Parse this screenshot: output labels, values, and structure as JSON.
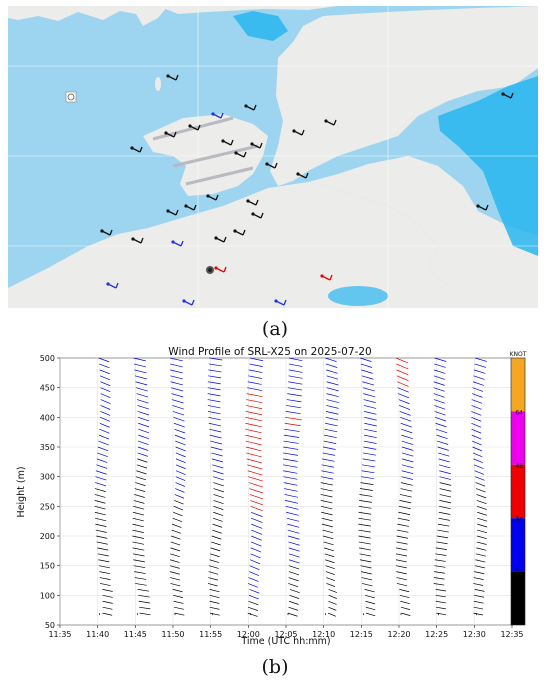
{
  "captions": {
    "a": "(a)",
    "b": "(b)"
  },
  "map": {
    "colors": {
      "land": "#ececea",
      "water": "#9dd4ef",
      "rain": "#29b6ef",
      "grid": "#ffffff"
    },
    "icons": [
      "wind-barb-icon",
      "compass-icon"
    ]
  },
  "chart_data": {
    "type": "scatter",
    "title": "Wind Profile of SRL-X25 on 2025-07-20",
    "xlabel": "Time (UTC hh:mm)",
    "ylabel": "Height (m)",
    "x_ticks": [
      "11:35",
      "11:40",
      "11:45",
      "11:50",
      "11:55",
      "12:00",
      "12:05",
      "12:10",
      "12:15",
      "12:20",
      "12:25",
      "12:30",
      "12:35"
    ],
    "y_ticks": [
      50,
      100,
      150,
      200,
      250,
      300,
      350,
      400,
      450,
      500
    ],
    "xlim": [
      "11:35",
      "12:35"
    ],
    "ylim": [
      50,
      500
    ],
    "grid": true,
    "times": [
      "11:40",
      "11:45",
      "11:50",
      "11:55",
      "12:00",
      "12:05",
      "12:10",
      "12:15",
      "12:20",
      "12:25",
      "12:30"
    ],
    "heights": {
      "start": 70,
      "end": 500,
      "step": 10
    },
    "speed_profiles": [
      [
        [
          70,
          12
        ],
        [
          150,
          16
        ],
        [
          270,
          20
        ],
        [
          300,
          24
        ],
        [
          380,
          25
        ],
        [
          500,
          26
        ]
      ],
      [
        [
          70,
          14
        ],
        [
          200,
          20
        ],
        [
          300,
          20
        ],
        [
          380,
          24
        ],
        [
          420,
          26
        ],
        [
          500,
          24
        ]
      ],
      [
        [
          70,
          12
        ],
        [
          200,
          18
        ],
        [
          300,
          24
        ],
        [
          400,
          26
        ],
        [
          500,
          26
        ]
      ],
      [
        [
          70,
          12
        ],
        [
          200,
          18
        ],
        [
          300,
          22
        ],
        [
          400,
          23
        ],
        [
          500,
          22
        ]
      ],
      [
        [
          70,
          20
        ],
        [
          180,
          28
        ],
        [
          240,
          32
        ],
        [
          260,
          36
        ],
        [
          300,
          40
        ],
        [
          400,
          40
        ],
        [
          440,
          36
        ],
        [
          460,
          28
        ],
        [
          500,
          26
        ]
      ],
      [
        [
          70,
          18
        ],
        [
          200,
          24
        ],
        [
          300,
          28
        ],
        [
          380,
          32
        ],
        [
          400,
          36
        ],
        [
          410,
          30
        ],
        [
          500,
          26
        ]
      ],
      [
        [
          70,
          14
        ],
        [
          200,
          18
        ],
        [
          300,
          22
        ],
        [
          400,
          24
        ],
        [
          500,
          26
        ]
      ],
      [
        [
          70,
          14
        ],
        [
          200,
          20
        ],
        [
          300,
          22
        ],
        [
          400,
          24
        ],
        [
          500,
          26
        ]
      ],
      [
        [
          70,
          12
        ],
        [
          200,
          18
        ],
        [
          300,
          22
        ],
        [
          420,
          28
        ],
        [
          450,
          32
        ],
        [
          470,
          36
        ],
        [
          490,
          38
        ],
        [
          500,
          36
        ]
      ],
      [
        [
          70,
          10
        ],
        [
          200,
          16
        ],
        [
          300,
          22
        ],
        [
          380,
          25
        ],
        [
          500,
          26
        ]
      ],
      [
        [
          70,
          10
        ],
        [
          200,
          16
        ],
        [
          300,
          22
        ],
        [
          380,
          24
        ],
        [
          500,
          26
        ]
      ]
    ],
    "colorbar": {
      "title": "KNOT",
      "bins": [
        {
          "min": 0,
          "max": 22,
          "color": "#000000"
        },
        {
          "min": 22,
          "max": 34,
          "color": "#0000ee"
        },
        {
          "min": 34,
          "max": 48,
          "color": "#ee0000"
        },
        {
          "min": 48,
          "max": 64,
          "color": "#ee00ee"
        },
        {
          "min": 64,
          "max": null,
          "color": "#f5a623"
        }
      ],
      "labels": [
        "22",
        "34",
        "48",
        "64"
      ]
    }
  }
}
